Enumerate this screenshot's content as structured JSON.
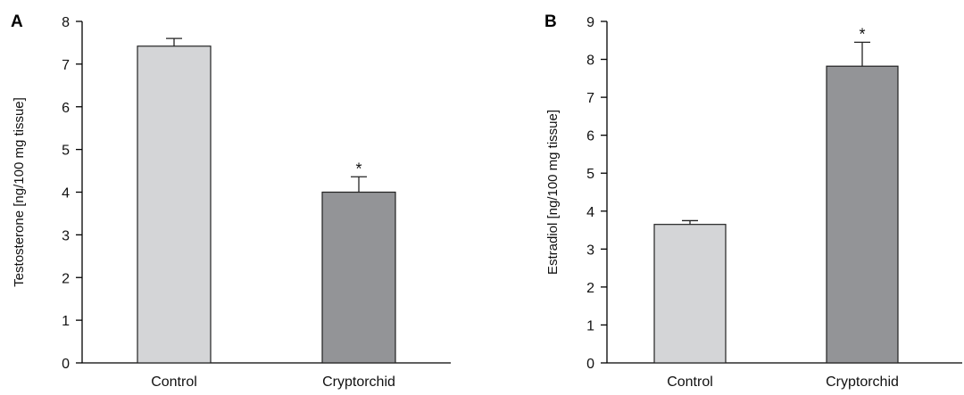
{
  "chart_data": [
    {
      "type": "bar",
      "panel": "A",
      "categories": [
        "Control",
        "Cryptorchid"
      ],
      "values": [
        7.42,
        4.0
      ],
      "errors": [
        0.18,
        0.36
      ],
      "significance": [
        "",
        "*"
      ],
      "bar_colors": [
        "#d4d5d7",
        "#939497"
      ],
      "title": "",
      "xlabel": "",
      "ylabel": "Testosterone [ng/100 mg tissue]",
      "ylim": [
        0,
        8
      ],
      "yticks": [
        0,
        1,
        2,
        3,
        4,
        5,
        6,
        7,
        8
      ],
      "grid": false
    },
    {
      "type": "bar",
      "panel": "B",
      "categories": [
        "Control",
        "Cryptorchid"
      ],
      "values": [
        3.65,
        7.82
      ],
      "errors": [
        0.1,
        0.63
      ],
      "significance": [
        "",
        "*"
      ],
      "bar_colors": [
        "#d4d5d7",
        "#939497"
      ],
      "title": "",
      "xlabel": "",
      "ylabel": "Estradiol [ng/100 mg tissue]",
      "ylim": [
        0,
        9
      ],
      "yticks": [
        0,
        1,
        2,
        3,
        4,
        5,
        6,
        7,
        8,
        9
      ],
      "grid": false
    }
  ]
}
